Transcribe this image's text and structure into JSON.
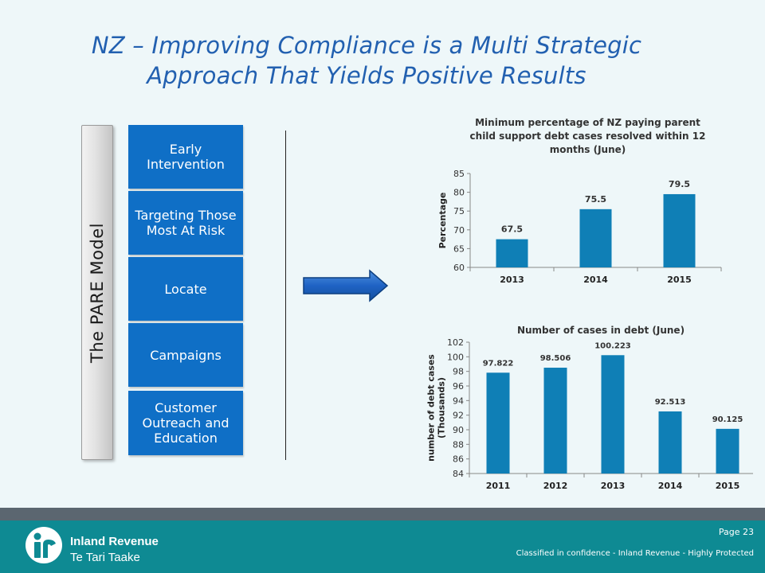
{
  "title_line1": "NZ – Improving Compliance is a Multi Strategic",
  "title_line2": "Approach That Yields Positive Results",
  "model_label": "The PARE Model",
  "strategies": [
    "Early Intervention",
    "Targeting Those Most At Risk",
    "Locate",
    "Campaigns",
    "Customer Outreach and Education"
  ],
  "colors": {
    "title": "#2260b0",
    "strategy_box": "#0f6fc6",
    "bar": "#0f7fb6",
    "footer": "#0e8a93",
    "footer_strip": "#5b6670"
  },
  "chart_data": [
    {
      "type": "bar",
      "title": "Minimum percentage of NZ paying parent child support debt cases resolved within 12 months (June)",
      "title_lines": [
        "Minimum percentage of NZ paying parent",
        "child support debt cases resolved within 12",
        "months (June)"
      ],
      "categories": [
        "2013",
        "2014",
        "2015"
      ],
      "values": [
        67.5,
        75.5,
        79.5
      ],
      "value_labels": [
        "67.5",
        "75.5",
        "79.5"
      ],
      "ylabel": "Percentage",
      "ylabel_lines": [
        "Percentage"
      ],
      "ylim": [
        60,
        85
      ],
      "yticks": [
        60,
        65,
        70,
        75,
        80,
        85
      ],
      "grid": false
    },
    {
      "type": "bar",
      "title": "Number of cases in debt (June)",
      "title_lines": [
        "Number of cases in debt (June)"
      ],
      "categories": [
        "2011",
        "2012",
        "2013",
        "2014",
        "2015"
      ],
      "values": [
        97.822,
        98.506,
        100.223,
        92.513,
        90.125
      ],
      "value_labels": [
        "97.822",
        "98.506",
        "100.223",
        "92.513",
        "90.125"
      ],
      "ylabel": "number of debt cases (Thousands)",
      "ylabel_lines": [
        "number of debt cases",
        "(Thousands)"
      ],
      "ylim": [
        84,
        102
      ],
      "yticks": [
        84,
        86,
        88,
        90,
        92,
        94,
        96,
        98,
        100,
        102
      ],
      "grid": false
    }
  ],
  "footer": {
    "logo_line1": "Inland Revenue",
    "logo_line2": "Te Tari Taake",
    "page": "Page 23",
    "classification": "Classified in confidence - Inland Revenue - Highly Protected"
  }
}
